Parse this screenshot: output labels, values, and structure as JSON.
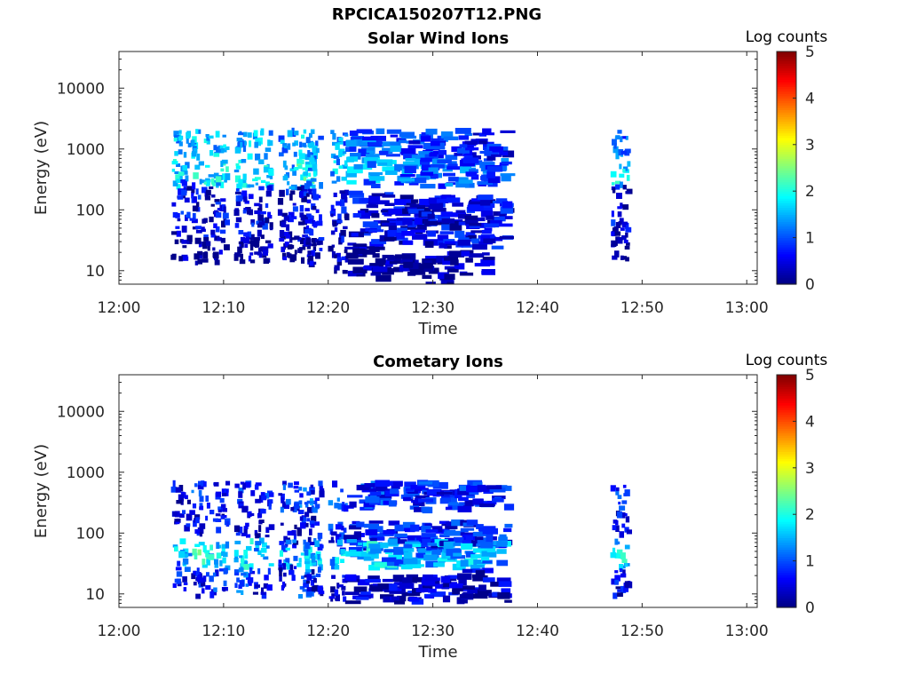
{
  "figure_title": "RPCICA150207T12.PNG",
  "chart_data": [
    {
      "type": "heatmap",
      "title": "Solar Wind Ions",
      "xlabel": "Time",
      "ylabel": "Energy (eV)",
      "yscale": "log",
      "xlim": [
        "12:00",
        "13:01"
      ],
      "ylim": [
        6,
        40000
      ],
      "x_ticks": [
        "12:00",
        "12:10",
        "12:20",
        "12:30",
        "12:40",
        "12:50",
        "13:00"
      ],
      "y_ticks": [
        "10",
        "100",
        "1000",
        "10000"
      ],
      "colorbar": {
        "label": "Log counts",
        "range": [
          0,
          5
        ],
        "ticks": [
          "0",
          "1",
          "2",
          "3",
          "4",
          "5"
        ],
        "colormap": "jet"
      },
      "grid": false,
      "bursts": [
        {
          "t": 12.1,
          "bands": [
            [
              1200,
              2
            ],
            [
              400,
              2.2
            ],
            [
              180,
              1
            ],
            [
              60,
              1.2
            ],
            [
              25,
              0.6
            ]
          ]
        },
        {
          "t": 12.3,
          "bands": [
            [
              1200,
              2
            ],
            [
              380,
              2.5
            ],
            [
              150,
              1
            ],
            [
              50,
              1
            ],
            [
              22,
              0.6
            ]
          ]
        },
        {
          "t": 12.8,
          "bands": [
            [
              1200,
              1.5
            ],
            [
              400,
              2.2
            ],
            [
              150,
              1
            ],
            [
              55,
              1
            ],
            [
              25,
              0.6
            ]
          ]
        },
        {
          "t": 12.13,
          "bands": [
            [
              1200,
              2
            ],
            [
              380,
              2.2
            ],
            [
              150,
              1
            ],
            [
              55,
              1
            ],
            [
              22,
              0.6
            ]
          ]
        },
        {
          "t": 12.16,
          "bands": [
            [
              1200,
              2
            ],
            [
              380,
              2.2
            ],
            [
              150,
              1
            ],
            [
              55,
              1
            ],
            [
              22,
              0.6
            ]
          ]
        },
        {
          "t": 12.2,
          "bands": [
            [
              1200,
              2
            ],
            [
              380,
              2.2
            ],
            [
              140,
              1
            ],
            [
              55,
              1
            ],
            [
              22,
              0.6
            ]
          ]
        },
        {
          "t": 12.23,
          "bands": [
            [
              1200,
              2
            ],
            [
              380,
              2.2
            ],
            [
              140,
              1
            ],
            [
              55,
              1
            ],
            [
              22,
              0.6
            ]
          ]
        },
        {
          "t": 12.27,
          "bands": [
            [
              1200,
              1.8
            ],
            [
              380,
              2
            ],
            [
              120,
              1
            ],
            [
              50,
              1
            ],
            [
              25,
              0.6
            ]
          ]
        },
        {
          "t": 12.31,
          "bands": [
            [
              1200,
              1.8
            ],
            [
              400,
              2
            ],
            [
              120,
              1
            ],
            [
              40,
              1
            ],
            [
              20,
              0.8
            ]
          ]
        },
        {
          "t": 12.35,
          "bands": [
            [
              1200,
              1.8
            ],
            [
              400,
              2
            ],
            [
              120,
              1
            ],
            [
              40,
              1
            ],
            [
              15,
              0.8
            ]
          ]
        },
        {
          "t": 12.39,
          "bands": [
            [
              1200,
              1.6
            ],
            [
              420,
              2
            ],
            [
              120,
              1
            ],
            [
              40,
              1
            ],
            [
              15,
              0.6
            ]
          ]
        },
        {
          "t": 12.42,
          "bands": [
            [
              1200,
              1.5
            ],
            [
              400,
              1.8
            ],
            [
              110,
              1
            ],
            [
              40,
              1
            ],
            [
              12,
              0.6
            ]
          ]
        },
        {
          "t": 12.45,
          "bands": [
            [
              1200,
              1.5
            ],
            [
              400,
              1.6
            ],
            [
              110,
              1
            ],
            [
              40,
              1
            ],
            [
              12,
              0.6
            ]
          ]
        },
        {
          "t": 12.48,
          "bands": [
            [
              1200,
              1.3
            ],
            [
              400,
              1.6
            ],
            [
              100,
              1
            ],
            [
              40,
              1
            ],
            [
              12,
              0.6
            ]
          ]
        },
        {
          "t": 12.51,
          "bands": [
            [
              1200,
              1.3
            ],
            [
              400,
              1.6
            ],
            [
              100,
              1
            ],
            [
              40,
              1
            ],
            [
              10,
              0.6
            ]
          ]
        },
        {
          "t": 12.54,
          "bands": [
            [
              1200,
              1.3
            ],
            [
              400,
              1.6
            ],
            [
              100,
              1
            ],
            [
              40,
              1
            ],
            [
              12,
              0.6
            ]
          ]
        },
        {
          "t": 12.57,
          "bands": [
            [
              1200,
              1.2
            ],
            [
              400,
              1.5
            ],
            [
              100,
              1
            ],
            [
              40,
              1
            ],
            [
              12,
              0.6
            ]
          ]
        },
        {
          "t": 12.6,
          "bands": [
            [
              1200,
              1.2
            ],
            [
              400,
              1.5
            ],
            [
              100,
              1
            ],
            [
              40,
              1
            ]
          ]
        }
      ]
    },
    {
      "type": "heatmap",
      "title": "Cometary Ions",
      "xlabel": "Time",
      "ylabel": "Energy (eV)",
      "yscale": "log",
      "xlim": [
        "12:00",
        "13:01"
      ],
      "ylim": [
        6,
        40000
      ],
      "x_ticks": [
        "12:00",
        "12:10",
        "12:20",
        "12:30",
        "12:40",
        "12:50",
        "13:00"
      ],
      "y_ticks": [
        "10",
        "100",
        "1000",
        "10000"
      ],
      "colorbar": {
        "label": "Log counts",
        "range": [
          0,
          5
        ],
        "ticks": [
          "0",
          "1",
          "2",
          "3",
          "4",
          "5"
        ],
        "colormap": "jet"
      },
      "grid": false,
      "bursts": [
        {
          "t": 12.1,
          "bands": [
            [
              420,
              1
            ],
            [
              150,
              1
            ],
            [
              50,
              2
            ],
            [
              20,
              1.2
            ]
          ]
        },
        {
          "t": 12.3,
          "bands": [
            [
              420,
              1.5
            ],
            [
              150,
              1
            ],
            [
              45,
              2
            ],
            [
              15,
              1.5
            ]
          ]
        },
        {
          "t": 12.8,
          "bands": [
            [
              400,
              1.3
            ],
            [
              150,
              1
            ],
            [
              45,
              2.2
            ],
            [
              15,
              1
            ]
          ]
        },
        {
          "t": 12.13,
          "bands": [
            [
              400,
              1.3
            ],
            [
              150,
              1
            ],
            [
              45,
              2.5
            ],
            [
              15,
              1
            ]
          ]
        },
        {
          "t": 12.16,
          "bands": [
            [
              400,
              1.3
            ],
            [
              150,
              1
            ],
            [
              45,
              2.2
            ],
            [
              15,
              1.3
            ]
          ]
        },
        {
          "t": 12.2,
          "bands": [
            [
              400,
              1.3
            ],
            [
              150,
              1
            ],
            [
              45,
              2.2
            ],
            [
              15,
              1.5
            ]
          ]
        },
        {
          "t": 12.23,
          "bands": [
            [
              400,
              1.3
            ],
            [
              150,
              1
            ],
            [
              45,
              2
            ],
            [
              15,
              1
            ]
          ]
        },
        {
          "t": 12.27,
          "bands": [
            [
              400,
              1.2
            ],
            [
              90,
              1
            ],
            [
              45,
              2
            ],
            [
              20,
              1
            ]
          ]
        },
        {
          "t": 12.31,
          "bands": [
            [
              400,
              1.3
            ],
            [
              90,
              1.2
            ],
            [
              45,
              2
            ],
            [
              15,
              1
            ]
          ]
        },
        {
          "t": 12.35,
          "bands": [
            [
              400,
              1.5
            ],
            [
              90,
              1.2
            ],
            [
              45,
              2
            ],
            [
              12,
              1
            ]
          ]
        },
        {
          "t": 12.39,
          "bands": [
            [
              400,
              1.3
            ],
            [
              90,
              1.2
            ],
            [
              45,
              1.8
            ],
            [
              12,
              0.8
            ]
          ]
        },
        {
          "t": 12.42,
          "bands": [
            [
              400,
              1.3
            ],
            [
              90,
              1.2
            ],
            [
              45,
              2.2
            ],
            [
              12,
              0.8
            ]
          ]
        },
        {
          "t": 12.45,
          "bands": [
            [
              400,
              1.2
            ],
            [
              90,
              1.2
            ],
            [
              45,
              1.8
            ],
            [
              12,
              0.8
            ]
          ]
        },
        {
          "t": 12.48,
          "bands": [
            [
              400,
              1.2
            ],
            [
              90,
              1.2
            ],
            [
              45,
              1.8
            ],
            [
              12,
              0.8
            ]
          ]
        },
        {
          "t": 12.51,
          "bands": [
            [
              400,
              1.2
            ],
            [
              90,
              1.2
            ],
            [
              45,
              2
            ],
            [
              12,
              1
            ]
          ]
        },
        {
          "t": 12.54,
          "bands": [
            [
              400,
              1.2
            ],
            [
              90,
              1.2
            ],
            [
              45,
              2
            ],
            [
              12,
              0.8
            ]
          ]
        },
        {
          "t": 12.57,
          "bands": [
            [
              400,
              1.2
            ],
            [
              90,
              1.2
            ],
            [
              45,
              1.8
            ],
            [
              15,
              0.8
            ]
          ]
        },
        {
          "t": 12.6,
          "bands": [
            [
              400,
              1.2
            ],
            [
              90,
              1.2
            ],
            [
              45,
              1.8
            ],
            [
              12,
              0.8
            ]
          ]
        }
      ]
    }
  ]
}
